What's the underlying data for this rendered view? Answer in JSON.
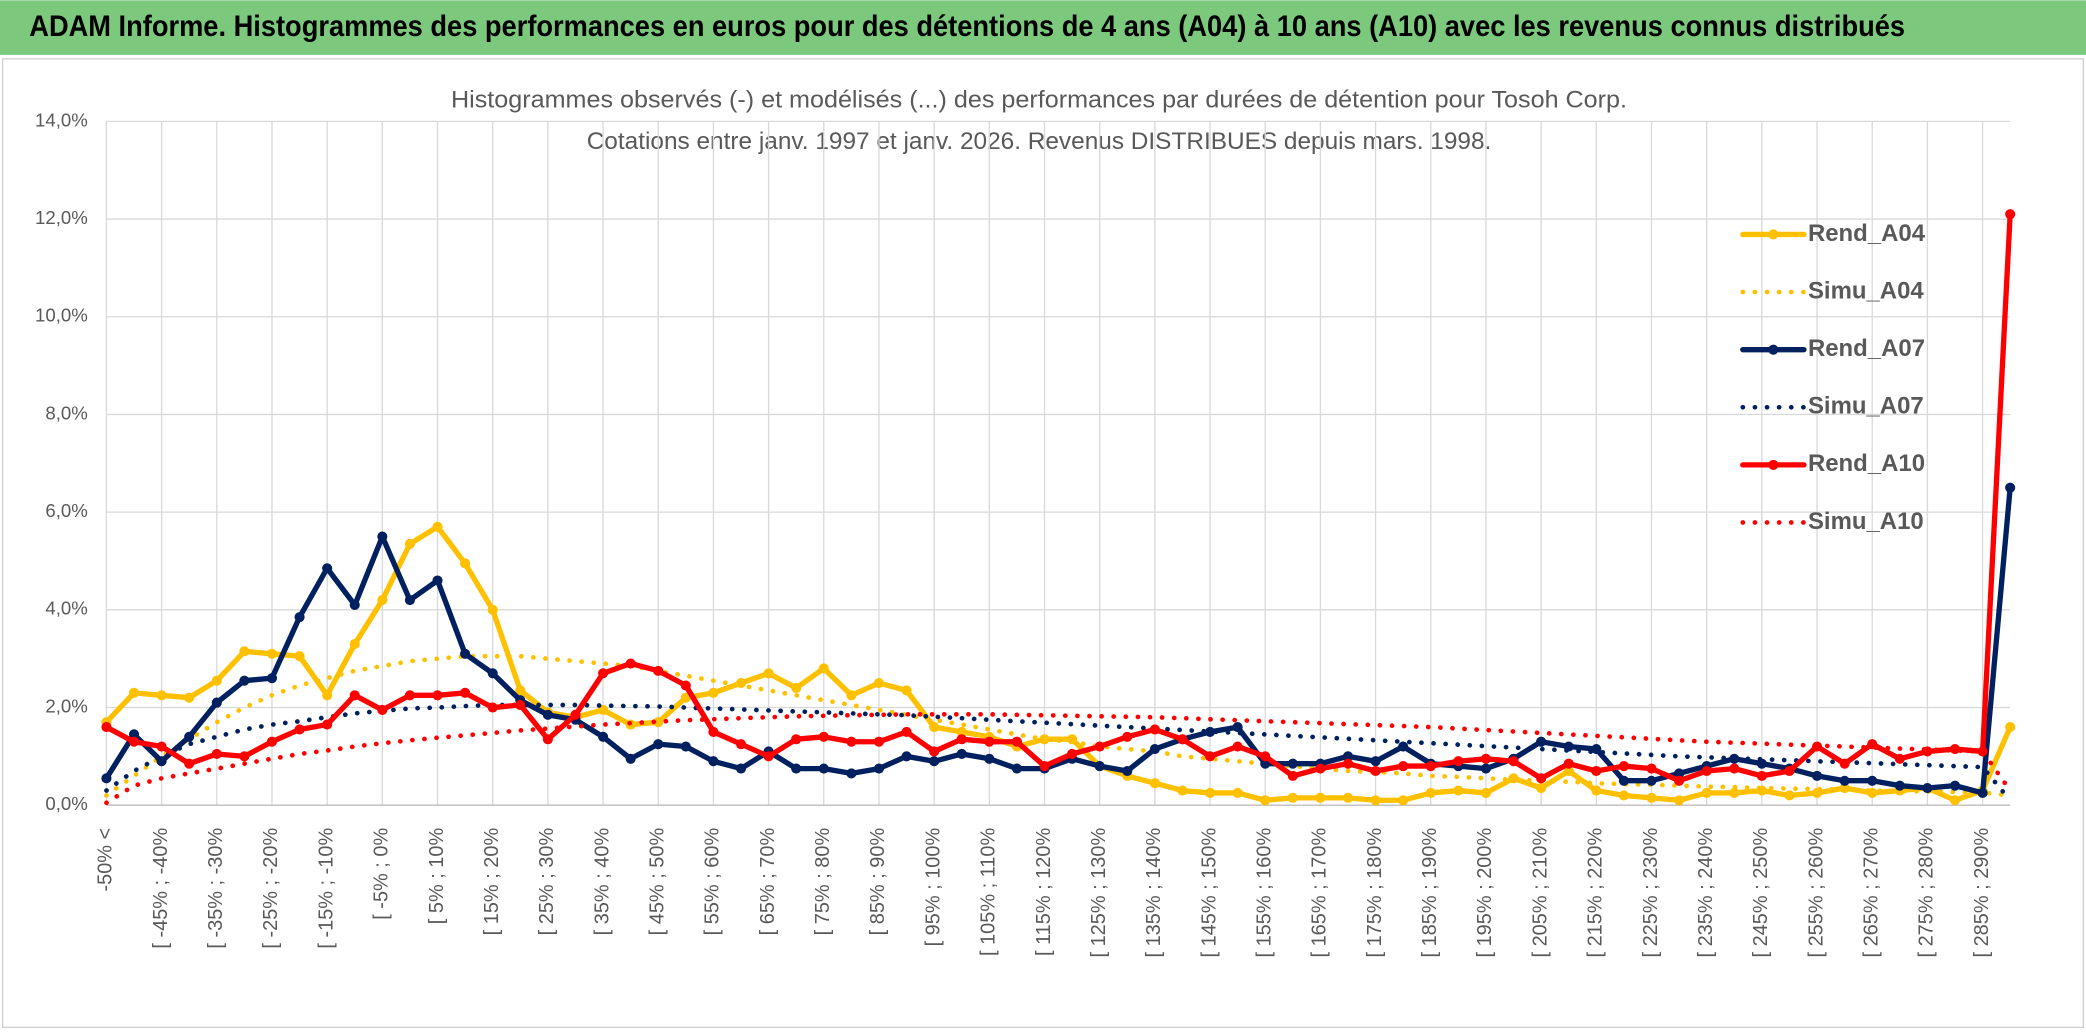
{
  "header": {
    "title": "ADAM Informe. Histogrammes des performances en euros pour des détentions de 4 ans (A04) à 10 ans (A10) avec les revenus connus distribués"
  },
  "chart_data": {
    "type": "line",
    "title": "Histogrammes observés (-) et modélisés (...) des performances par durées de détention pour Tosoh Corp.",
    "subtitle": "Cotations entre janv. 1997 et janv. 2026. Revenus DISTRIBUES depuis mars. 1998.",
    "categories": [
      "-50% <",
      null,
      "[ -45% ; -40%",
      null,
      "[ -35% ; -30%",
      null,
      "[ -25% ; -20%",
      null,
      "[ -15% ; -10%",
      null,
      "[ -5% ; 0%",
      null,
      "[ 5% ; 10%",
      null,
      "[ 15% ; 20%",
      null,
      "[ 25% ; 30%",
      null,
      "[ 35% ; 40%",
      null,
      "[ 45% ; 50%",
      null,
      "[ 55% ; 60%",
      null,
      "[ 65% ; 70%",
      null,
      "[ 75% ; 80%",
      null,
      "[ 85% ; 90%",
      null,
      "[ 95% ; 100%",
      null,
      "[ 105% ; 110%",
      null,
      "[ 115% ; 120%",
      null,
      "[ 125% ; 130%",
      null,
      "[ 135% ; 140%",
      null,
      "[ 145% ; 150%",
      null,
      "[ 155% ; 160%",
      null,
      "[ 165% ; 170%",
      null,
      "[ 175% ; 180%",
      null,
      "[ 185% ; 190%",
      null,
      "[ 195% ; 200%",
      null,
      "[ 205% ; 210%",
      null,
      "[ 215% ; 220%",
      null,
      "[ 225% ; 230%",
      null,
      "[ 235% ; 240%",
      null,
      "[ 245% ; 250%",
      null,
      "[ 255% ; 260%",
      null,
      "[ 265% ; 270%",
      null,
      "[ 275% ; 280%",
      null,
      "[ 285% ; 290%",
      null
    ],
    "ylim": [
      0,
      14
    ],
    "yticks": [
      {
        "value": 0,
        "label": "0,0%"
      },
      {
        "value": 2,
        "label": "2,0%"
      },
      {
        "value": 4,
        "label": "4,0%"
      },
      {
        "value": 6,
        "label": "6,0%"
      },
      {
        "value": 8,
        "label": "8,0%"
      },
      {
        "value": 10,
        "label": "10,0%"
      },
      {
        "value": 12,
        "label": "12,0%"
      },
      {
        "value": 14,
        "label": "14,0%"
      }
    ],
    "grid": true,
    "legend": "right",
    "series": [
      {
        "name": "Rend_A04",
        "color": "#ffc000",
        "style": "solid",
        "values": [
          1.7,
          2.3,
          2.25,
          2.2,
          2.55,
          3.15,
          3.1,
          3.05,
          2.25,
          3.3,
          4.2,
          5.35,
          5.7,
          4.95,
          4.0,
          2.35,
          1.9,
          1.8,
          1.95,
          1.65,
          1.7,
          2.2,
          2.3,
          2.5,
          2.7,
          2.4,
          2.8,
          2.25,
          2.5,
          2.35,
          1.6,
          1.5,
          1.4,
          1.2,
          1.35,
          1.35,
          0.8,
          0.6,
          0.45,
          0.3,
          0.25,
          0.25,
          0.1,
          0.15,
          0.15,
          0.15,
          0.1,
          0.1,
          0.25,
          0.3,
          0.25,
          0.55,
          0.35,
          0.7,
          0.3,
          0.2,
          0.15,
          0.1,
          0.25,
          0.25,
          0.3,
          0.2,
          0.25,
          0.35,
          0.25,
          0.3,
          0.35,
          0.1,
          0.3,
          1.6
        ]
      },
      {
        "name": "Simu_A04",
        "color": "#ffc000",
        "style": "dotted",
        "values": [
          0.2,
          0.6,
          1.0,
          1.35,
          1.7,
          2.0,
          2.25,
          2.45,
          2.6,
          2.75,
          2.85,
          2.95,
          3.0,
          3.05,
          3.05,
          3.05,
          3.0,
          2.95,
          2.9,
          2.85,
          2.75,
          2.65,
          2.55,
          2.45,
          2.35,
          2.25,
          2.15,
          2.05,
          1.95,
          1.85,
          1.75,
          1.65,
          1.55,
          1.45,
          1.35,
          1.3,
          1.2,
          1.15,
          1.1,
          1.0,
          0.95,
          0.9,
          0.85,
          0.8,
          0.75,
          0.7,
          0.68,
          0.65,
          0.6,
          0.58,
          0.55,
          0.52,
          0.5,
          0.48,
          0.45,
          0.43,
          0.42,
          0.4,
          0.38,
          0.37,
          0.35,
          0.34,
          0.33,
          0.32,
          0.3,
          0.29,
          0.28,
          0.27,
          0.26,
          0.2
        ]
      },
      {
        "name": "Rend_A07",
        "color": "#002060",
        "style": "solid",
        "values": [
          0.55,
          1.45,
          0.9,
          1.4,
          2.1,
          2.55,
          2.6,
          3.85,
          4.85,
          4.1,
          5.5,
          4.2,
          4.6,
          3.1,
          2.7,
          2.15,
          1.85,
          1.75,
          1.4,
          0.95,
          1.25,
          1.2,
          0.9,
          0.75,
          1.1,
          0.75,
          0.75,
          0.65,
          0.75,
          1.0,
          0.9,
          1.05,
          0.95,
          0.75,
          0.75,
          0.95,
          0.8,
          0.7,
          1.15,
          1.35,
          1.5,
          1.6,
          0.85,
          0.85,
          0.85,
          1.0,
          0.9,
          1.2,
          0.85,
          0.8,
          0.75,
          0.95,
          1.3,
          1.2,
          1.15,
          0.5,
          0.5,
          0.65,
          0.8,
          0.95,
          0.85,
          0.75,
          0.6,
          0.5,
          0.5,
          0.4,
          0.35,
          0.4,
          0.25,
          6.5
        ]
      },
      {
        "name": "Simu_A07",
        "color": "#002060",
        "style": "dotted",
        "values": [
          0.3,
          0.7,
          1.0,
          1.25,
          1.4,
          1.55,
          1.65,
          1.72,
          1.8,
          1.88,
          1.93,
          1.98,
          2.0,
          2.03,
          2.05,
          2.05,
          2.05,
          2.05,
          2.04,
          2.03,
          2.02,
          2.0,
          1.98,
          1.96,
          1.94,
          1.92,
          1.9,
          1.88,
          1.86,
          1.84,
          1.81,
          1.78,
          1.75,
          1.72,
          1.69,
          1.66,
          1.63,
          1.6,
          1.57,
          1.54,
          1.51,
          1.48,
          1.45,
          1.42,
          1.39,
          1.36,
          1.33,
          1.3,
          1.27,
          1.24,
          1.21,
          1.18,
          1.15,
          1.12,
          1.09,
          1.06,
          1.03,
          1.0,
          0.98,
          0.96,
          0.94,
          0.92,
          0.9,
          0.88,
          0.86,
          0.84,
          0.82,
          0.8,
          0.78,
          0.1
        ]
      },
      {
        "name": "Rend_A10",
        "color": "#ff0000",
        "style": "solid",
        "values": [
          1.6,
          1.3,
          1.2,
          0.85,
          1.05,
          1.0,
          1.3,
          1.55,
          1.65,
          2.25,
          1.95,
          2.25,
          2.25,
          2.3,
          2.0,
          2.05,
          1.35,
          1.85,
          2.7,
          2.9,
          2.75,
          2.45,
          1.5,
          1.25,
          1.0,
          1.35,
          1.4,
          1.3,
          1.3,
          1.5,
          1.1,
          1.35,
          1.3,
          1.3,
          0.8,
          1.05,
          1.2,
          1.4,
          1.55,
          1.35,
          1.0,
          1.2,
          1.0,
          0.6,
          0.75,
          0.85,
          0.7,
          0.8,
          0.8,
          0.9,
          0.95,
          0.9,
          0.55,
          0.85,
          0.7,
          0.8,
          0.75,
          0.5,
          0.7,
          0.75,
          0.6,
          0.7,
          1.2,
          0.85,
          1.25,
          0.95,
          1.1,
          1.15,
          1.1,
          12.1
        ]
      },
      {
        "name": "Simu_A10",
        "color": "#ff0000",
        "style": "dotted",
        "values": [
          0.05,
          0.4,
          0.55,
          0.65,
          0.75,
          0.85,
          0.95,
          1.05,
          1.12,
          1.2,
          1.27,
          1.33,
          1.38,
          1.43,
          1.48,
          1.53,
          1.57,
          1.61,
          1.65,
          1.68,
          1.71,
          1.74,
          1.76,
          1.78,
          1.8,
          1.82,
          1.83,
          1.84,
          1.85,
          1.86,
          1.86,
          1.86,
          1.86,
          1.85,
          1.84,
          1.83,
          1.82,
          1.81,
          1.8,
          1.78,
          1.76,
          1.74,
          1.72,
          1.7,
          1.68,
          1.66,
          1.64,
          1.62,
          1.6,
          1.57,
          1.54,
          1.51,
          1.48,
          1.45,
          1.42,
          1.39,
          1.36,
          1.33,
          1.3,
          1.28,
          1.26,
          1.24,
          1.22,
          1.2,
          1.18,
          1.16,
          1.14,
          1.12,
          1.1,
          0.3
        ]
      }
    ]
  }
}
